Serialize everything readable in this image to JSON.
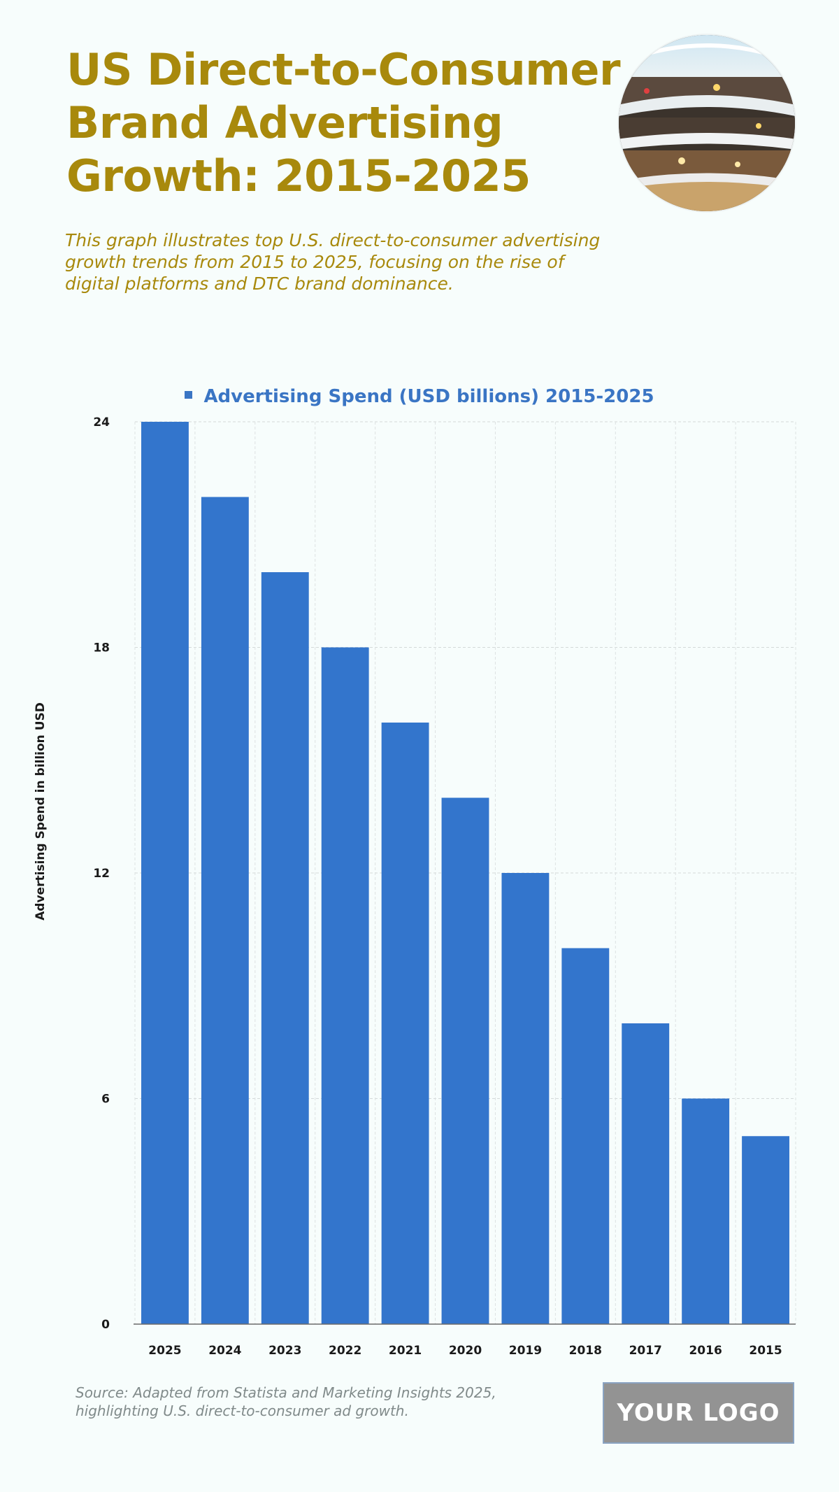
{
  "header": {
    "title": "US Direct-to-Consumer Brand Advertising Growth: 2015-2025",
    "description": "This graph illustrates top U.S. direct-to-consumer advertising growth trends from 2015 to 2025, focusing on the rise of digital platforms and DTC brand dominance."
  },
  "footer": {
    "source": "Source: Adapted from Statista and Marketing Insights 2025, highlighting U.S. direct-to-consumer ad growth.",
    "logo_text": "YOUR LOGO"
  },
  "chart_data": {
    "type": "bar",
    "categories": [
      "2025",
      "2024",
      "2023",
      "2022",
      "2021",
      "2020",
      "2019",
      "2018",
      "2017",
      "2016",
      "2015"
    ],
    "series": [
      {
        "name": "Advertising Spend (USD billions) 2015-2025",
        "values": [
          24,
          22,
          20,
          18,
          16,
          14,
          12,
          10,
          8,
          6,
          5
        ],
        "color": "#3375cc"
      }
    ],
    "ylabel": "Advertising Spend in billion USD",
    "xlabel": "",
    "ylim": [
      0,
      24
    ],
    "yticks": [
      0,
      6,
      12,
      18,
      24
    ],
    "grid": true,
    "legend_position": "top-center"
  }
}
